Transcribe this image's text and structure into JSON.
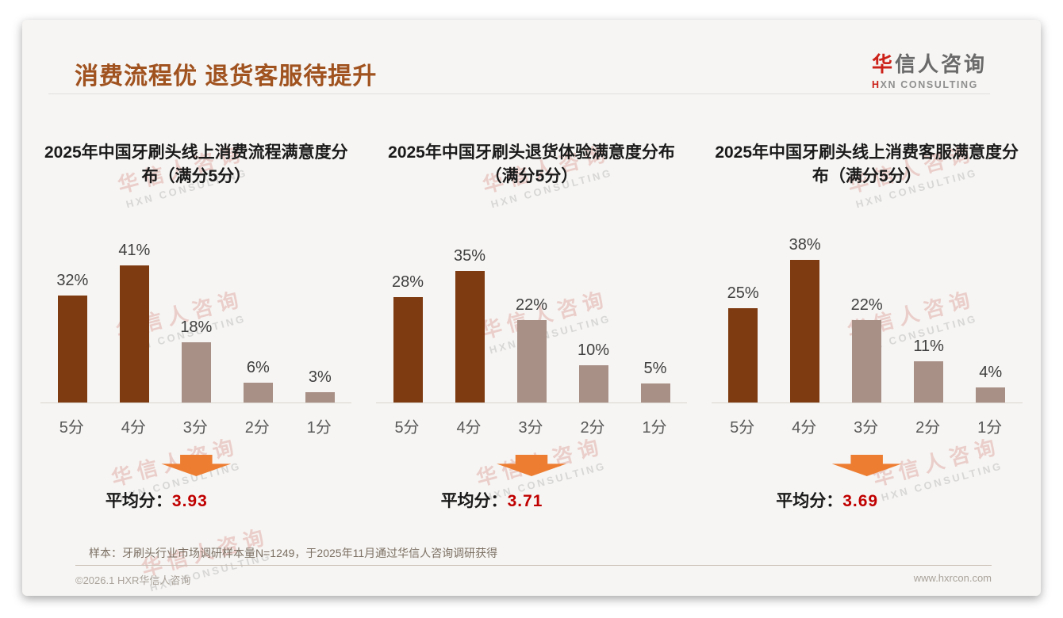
{
  "header": {
    "title": "消费流程优 退货客服待提升",
    "logo": {
      "zh_accent": "华",
      "zh_rest": "信人咨询",
      "en_accent": "H",
      "en_rest": "XN CONSULTING"
    }
  },
  "watermark": {
    "zh": "华信人咨询",
    "en": "HXN CONSULTING"
  },
  "colors": {
    "title": "#A0521F",
    "bar_dark": "#7E3A10",
    "bar_light": "#A89086",
    "arrow": "#ED7D31",
    "average_value": "#C00000",
    "logo_accent": "#CC2118"
  },
  "chart_data": [
    {
      "type": "bar",
      "title": "2025年中国牙刷头线上消费流程满意度分布（满分5分）",
      "categories": [
        "5分",
        "4分",
        "3分",
        "2分",
        "1分"
      ],
      "values": [
        32,
        41,
        18,
        6,
        3
      ],
      "value_labels": [
        "32%",
        "41%",
        "18%",
        "6%",
        "3%"
      ],
      "unit": "%",
      "ylim": [
        0,
        45
      ],
      "grid": false,
      "legend": "none",
      "bar_colors": [
        "#7E3A10",
        "#7E3A10",
        "#A89086",
        "#A89086",
        "#A89086"
      ],
      "average_label": "平均分：",
      "average_value": "3.93"
    },
    {
      "type": "bar",
      "title": "2025年中国牙刷头退货体验满意度分布（满分5分）",
      "categories": [
        "5分",
        "4分",
        "3分",
        "2分",
        "1分"
      ],
      "values": [
        28,
        35,
        22,
        10,
        5
      ],
      "value_labels": [
        "28%",
        "35%",
        "22%",
        "10%",
        "5%"
      ],
      "unit": "%",
      "ylim": [
        0,
        40
      ],
      "grid": false,
      "legend": "none",
      "bar_colors": [
        "#7E3A10",
        "#7E3A10",
        "#A89086",
        "#A89086",
        "#A89086"
      ],
      "average_label": "平均分：",
      "average_value": "3.71"
    },
    {
      "type": "bar",
      "title": "2025年中国牙刷头线上消费客服满意度分布（满分5分）",
      "categories": [
        "5分",
        "4分",
        "3分",
        "2分",
        "1分"
      ],
      "values": [
        25,
        38,
        22,
        11,
        4
      ],
      "value_labels": [
        "25%",
        "38%",
        "22%",
        "11%",
        "4%"
      ],
      "unit": "%",
      "ylim": [
        0,
        40
      ],
      "grid": false,
      "legend": "none",
      "bar_colors": [
        "#7E3A10",
        "#7E3A10",
        "#A89086",
        "#A89086",
        "#A89086"
      ],
      "average_label": "平均分：",
      "average_value": "3.69"
    }
  ],
  "footer": {
    "note": "样本：牙刷头行业市场调研样本量N=1249，于2025年11月通过华信人咨询调研获得",
    "left": "©2026.1 HXR华信人咨询",
    "right": "www.hxrcon.com"
  }
}
